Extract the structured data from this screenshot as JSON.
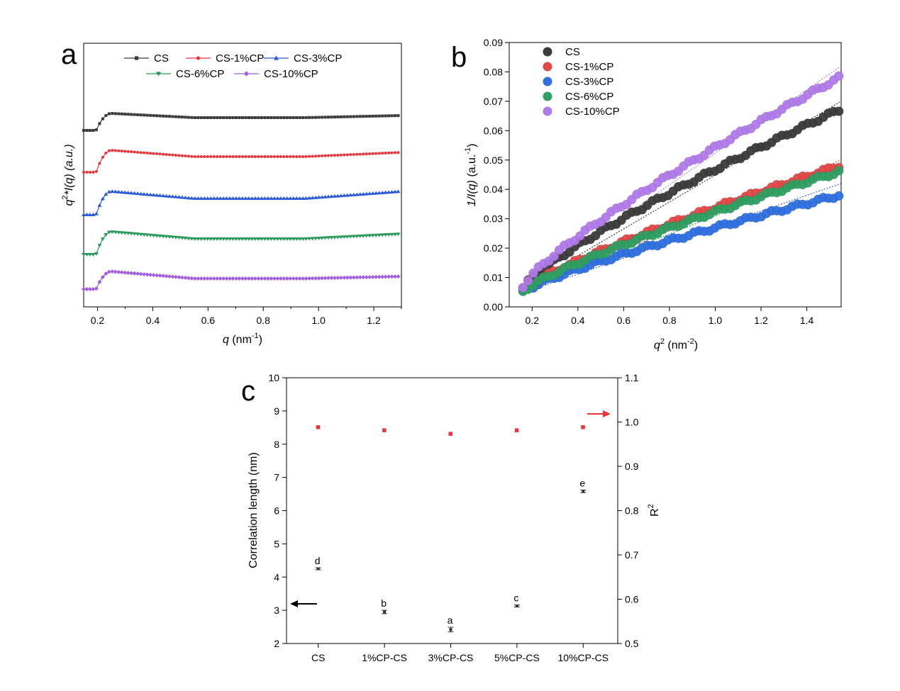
{
  "panels": [
    {
      "letter": "a",
      "chart_data": {
        "type": "line",
        "xlabel_main": "q",
        "xlabel_unit": " (nm",
        "xlabel_exp": "-1",
        "xlabel_close": ")",
        "ylabel_pre": "q",
        "ylabel_exp": "2",
        "ylabel_post": "*I(q) (a.u.)",
        "xlim": [
          0.15,
          1.3
        ],
        "xticks": [
          0.2,
          0.4,
          0.6,
          0.8,
          1.0,
          1.2
        ],
        "xtick_labels": [
          "0.2",
          "0.4",
          "0.6",
          "0.8",
          "1.0",
          "1.2"
        ],
        "yticks_shown": false,
        "legend_position": "top",
        "series": [
          {
            "name": "CS",
            "color": "#3a3a3a",
            "marker": "square",
            "baseline": 184,
            "plateau": 160,
            "dip": 166,
            "end": 163
          },
          {
            "name": "CS-1%CP",
            "color": "#e8343a",
            "marker": "circle",
            "baseline": 243,
            "plateau": 212,
            "dip": 221,
            "end": 215
          },
          {
            "name": "CS-3%CP",
            "color": "#2a5bd7",
            "marker": "triangle-up",
            "baseline": 303,
            "plateau": 270,
            "dip": 280,
            "end": 270
          },
          {
            "name": "CS-6%CP",
            "color": "#2a9a5a",
            "marker": "triangle-down",
            "baseline": 359,
            "plateau": 327,
            "dip": 337,
            "end": 330
          },
          {
            "name": "CS-10%CP",
            "color": "#a25de0",
            "marker": "diamond",
            "baseline": 408,
            "plateau": 383,
            "dip": 393,
            "end": 390
          }
        ]
      }
    },
    {
      "letter": "b",
      "chart_data": {
        "type": "scatter",
        "xlabel_main": "q",
        "xlabel_sup": "2",
        "xlabel_unit": " (nm",
        "xlabel_exp": "-2",
        "xlabel_close": ")",
        "ylabel_main": "1/I(q)",
        "ylabel_unit": " (a.u.",
        "ylabel_exp": "-1",
        "ylabel_close": ")",
        "xlim": [
          0.1,
          1.55
        ],
        "ylim": [
          0.0,
          0.09
        ],
        "xticks": [
          0.2,
          0.4,
          0.6,
          0.8,
          1.0,
          1.2,
          1.4
        ],
        "xtick_labels": [
          "0.2",
          "0.4",
          "0.6",
          "0.8",
          "1.0",
          "1.2",
          "1.4"
        ],
        "yticks": [
          0.0,
          0.01,
          0.02,
          0.03,
          0.04,
          0.05,
          0.06,
          0.07,
          0.08,
          0.09
        ],
        "ytick_labels": [
          "0.00",
          "0.01",
          "0.02",
          "0.03",
          "0.04",
          "0.05",
          "0.06",
          "0.07",
          "0.08",
          "0.09"
        ],
        "legend_position": "top-left",
        "series": [
          {
            "name": "CS",
            "color": "#3b3b3b",
            "x_start": 0.16,
            "x_end": 1.54,
            "y_start": 0.0065,
            "y_end": 0.067,
            "fit_end": 0.07
          },
          {
            "name": "CS-1%CP",
            "color": "#e04848",
            "x_start": 0.16,
            "x_end": 1.54,
            "y_start": 0.0055,
            "y_end": 0.048,
            "fit_end": 0.05
          },
          {
            "name": "CS-3%CP",
            "color": "#2f6fe0",
            "x_start": 0.16,
            "x_end": 1.54,
            "y_start": 0.005,
            "y_end": 0.038,
            "fit_end": 0.042
          },
          {
            "name": "CS-6%CP",
            "color": "#2fa062",
            "x_start": 0.16,
            "x_end": 1.54,
            "y_start": 0.0052,
            "y_end": 0.046,
            "fit_end": 0.048
          },
          {
            "name": "CS-10%CP",
            "color": "#b07ae8",
            "x_start": 0.16,
            "x_end": 1.54,
            "y_start": 0.007,
            "y_end": 0.078,
            "fit_end": 0.082
          }
        ]
      }
    },
    {
      "letter": "c",
      "chart_data": {
        "type": "scatter",
        "ylabel_left": "Correlation length (nm)",
        "ylabel_right_main": "R",
        "ylabel_right_exp": "2",
        "categories": [
          "CS",
          "1%CP-CS",
          "3%CP-CS",
          "5%CP-CS",
          "10%CP-CS"
        ],
        "ylim_left": [
          2,
          10
        ],
        "yticks_left": [
          2,
          3,
          4,
          5,
          6,
          7,
          8,
          9,
          10
        ],
        "ytick_labels_left": [
          "2",
          "3",
          "4",
          "5",
          "6",
          "7",
          "8",
          "9",
          "10"
        ],
        "ylim_right": [
          0.5,
          1.1
        ],
        "yticks_right": [
          0.5,
          0.6,
          0.7,
          0.8,
          0.9,
          1.0,
          1.1
        ],
        "ytick_labels_right": [
          "0.5",
          "0.6",
          "0.7",
          "0.8",
          "0.9",
          "1.0",
          "1.1"
        ],
        "correlation_length": [
          4.25,
          2.95,
          2.42,
          3.13,
          6.58
        ],
        "correlation_error": [
          0.03,
          0.05,
          0.07,
          0.03,
          0.04
        ],
        "significance_letters": [
          "d",
          "b",
          "a",
          "c",
          "e"
        ],
        "r_squared": [
          0.988,
          0.981,
          0.973,
          0.981,
          0.988
        ],
        "correlation_color": "#333333",
        "r_squared_color": "#e8343a"
      }
    }
  ]
}
